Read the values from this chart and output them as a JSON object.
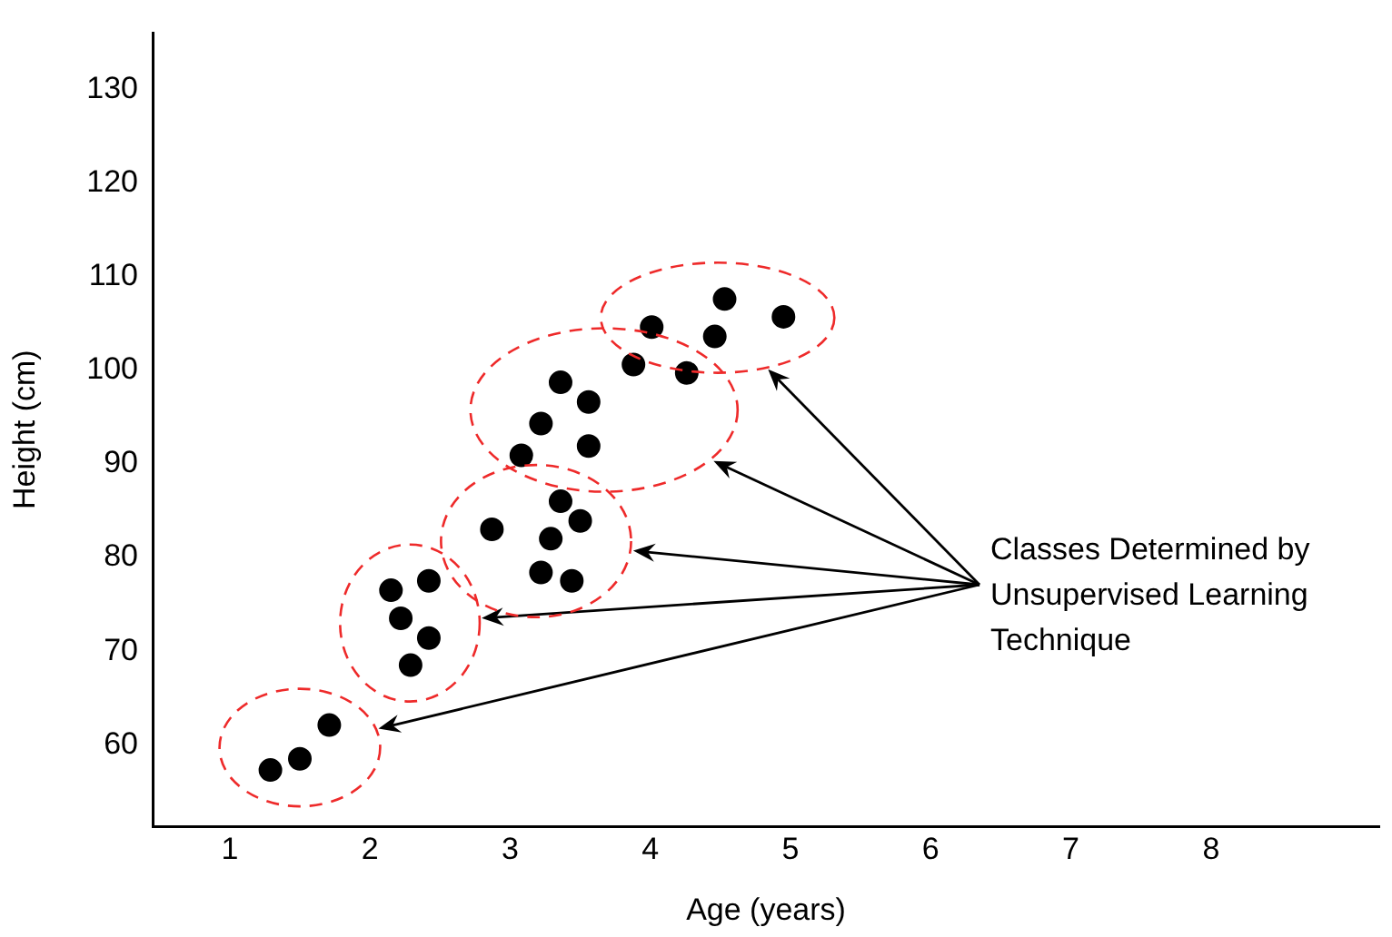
{
  "chart_data": {
    "type": "scatter",
    "xlabel": "Age (years)",
    "ylabel": "Height (cm)",
    "xlim": [
      0.45,
      9.2
    ],
    "xticks": [
      1,
      2,
      3,
      4,
      5,
      6,
      7,
      8
    ],
    "ylim": [
      51.3,
      136
    ],
    "yticks": [
      60,
      70,
      80,
      90,
      100,
      110,
      120,
      130
    ],
    "grid": false,
    "legend": false,
    "marker": "circle",
    "series": [
      {
        "color": "#000000",
        "x": [
          1.29,
          1.5,
          1.71
        ],
        "values": [
          57.3,
          58.5,
          62.1
        ]
      },
      {
        "color": "#000000",
        "x": [
          2.15,
          2.42,
          2.22,
          2.42,
          2.29
        ],
        "values": [
          76.5,
          77.5,
          73.5,
          71.4,
          68.5
        ]
      },
      {
        "color": "#000000",
        "x": [
          2.87,
          3.36,
          3.5,
          3.29,
          3.22,
          3.44
        ],
        "values": [
          83.0,
          86.0,
          83.9,
          82.0,
          78.4,
          77.5
        ]
      },
      {
        "color": "#000000",
        "x": [
          3.08,
          3.22,
          3.36,
          3.56,
          3.56,
          3.88,
          4.26
        ],
        "values": [
          90.9,
          94.3,
          98.7,
          96.6,
          91.9,
          100.6,
          99.7
        ]
      },
      {
        "color": "#000000",
        "x": [
          4.01,
          4.53,
          4.46,
          4.95
        ],
        "values": [
          104.6,
          107.6,
          103.6,
          105.7
        ]
      }
    ],
    "annotations": [
      "Classes Determined by Unsupervised Learning Technique"
    ]
  }
}
